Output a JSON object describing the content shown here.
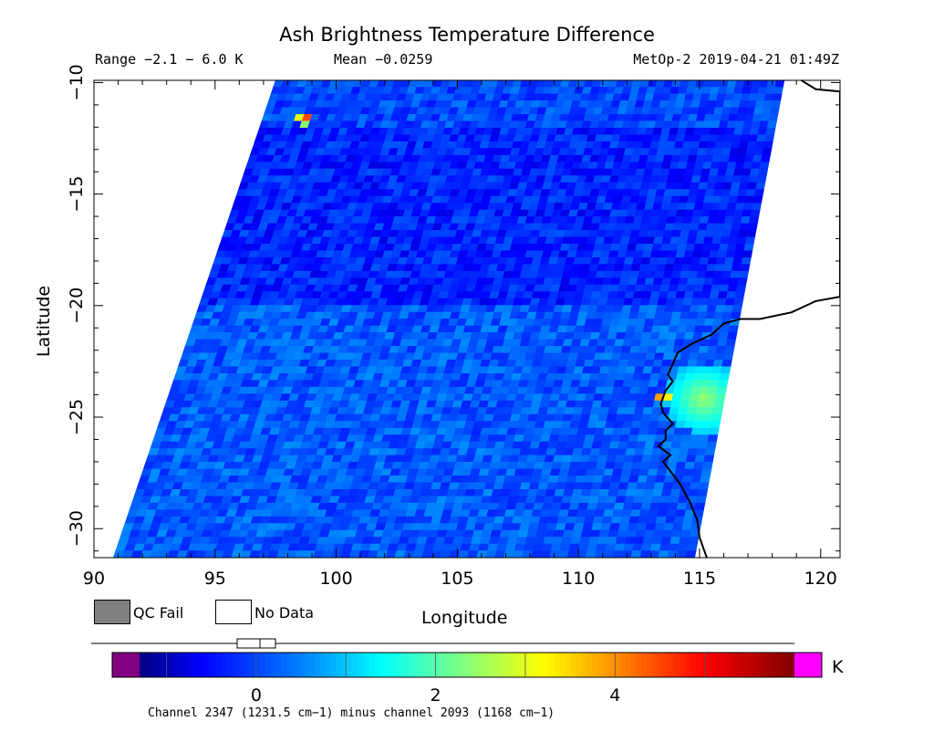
{
  "chart_data": {
    "type": "heatmap",
    "title": "Ash Brightness Temperature Difference",
    "range_text": "Range −2.1 − 6.0 K",
    "mean_text": "Mean −0.0259",
    "satellite_text": "MetOp-2 2019-04-21 01:49Z",
    "xlabel": "Longitude",
    "ylabel": "Latitude",
    "xlim": [
      90,
      120.8
    ],
    "ylim": [
      -31.3,
      -9.9
    ],
    "x_ticks": [
      90,
      95,
      100,
      105,
      110,
      115,
      120
    ],
    "y_ticks": [
      -10,
      -15,
      -20,
      -25,
      -30
    ],
    "swath": {
      "top_left_lon": 97.5,
      "top_right_lon": 118.5,
      "bottom_left_lon": 90.8,
      "bottom_right_lon": 114.8
    },
    "background_value_k": 0,
    "anomalies": [
      {
        "lon": 115.2,
        "lat": -24.2,
        "value": 2.5,
        "radius_deg": 1.6
      },
      {
        "lon": 113.5,
        "lat": -24.1,
        "value": 5.6,
        "radius_deg": 0.3
      },
      {
        "lon": 98.7,
        "lat": -11.6,
        "value": 5.6,
        "radius_deg": 0.3
      }
    ],
    "coastline": [
      [
        119.2,
        -9.9
      ],
      [
        119.8,
        -10.3
      ],
      [
        120.8,
        -10.4
      ],
      [
        120.8,
        -19.6
      ],
      [
        119.8,
        -19.8
      ],
      [
        118.8,
        -20.3
      ],
      [
        117.5,
        -20.6
      ],
      [
        116.7,
        -20.6
      ],
      [
        116.0,
        -20.8
      ],
      [
        115.5,
        -21.3
      ],
      [
        114.7,
        -21.7
      ],
      [
        114.1,
        -22.1
      ],
      [
        113.9,
        -22.6
      ],
      [
        113.7,
        -23.1
      ],
      [
        113.9,
        -23.4
      ],
      [
        113.6,
        -23.8
      ],
      [
        113.4,
        -24.4
      ],
      [
        113.5,
        -24.8
      ],
      [
        113.9,
        -25.3
      ],
      [
        113.6,
        -25.6
      ],
      [
        113.6,
        -26.0
      ],
      [
        113.3,
        -26.3
      ],
      [
        113.8,
        -26.7
      ],
      [
        113.5,
        -27.0
      ],
      [
        114.2,
        -28.0
      ],
      [
        114.6,
        -28.8
      ],
      [
        114.9,
        -29.6
      ],
      [
        115.0,
        -30.4
      ],
      [
        115.3,
        -31.3
      ]
    ],
    "colorbar": {
      "ticks": [
        0,
        2,
        4
      ],
      "vmin": -1.3,
      "vmax": 6.0,
      "under_color": "#800080",
      "over_color": "#ff00ff",
      "unit": "K",
      "stops": [
        [
          -1.3,
          "#000080"
        ],
        [
          -0.6,
          "#0000ff"
        ],
        [
          0.5,
          "#0080ff"
        ],
        [
          1.4,
          "#00ffff"
        ],
        [
          2.3,
          "#80ff80"
        ],
        [
          3.2,
          "#ffff00"
        ],
        [
          4.1,
          "#ff8000"
        ],
        [
          5.0,
          "#ff0000"
        ],
        [
          6.0,
          "#800000"
        ]
      ]
    },
    "qc_fail_color": "#808080",
    "legend": {
      "qc_fail": "QC Fail",
      "no_data": "No Data"
    },
    "footnote": "Channel 2347 (1231.5 cm−1) minus channel 2093 (1168 cm−1)"
  }
}
